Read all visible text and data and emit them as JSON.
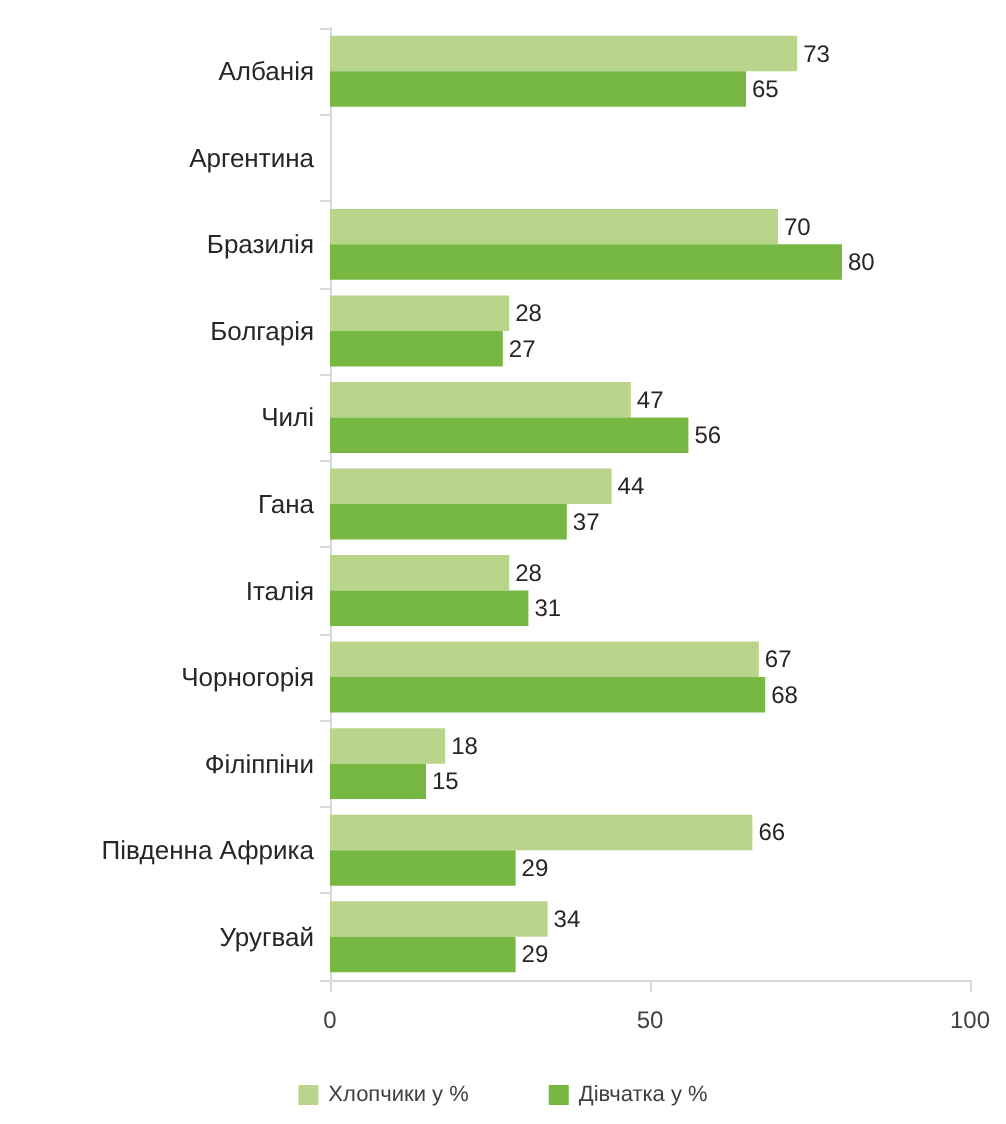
{
  "chart_data": {
    "type": "bar",
    "orientation": "horizontal",
    "categories": [
      "Албанія",
      "Аргентина",
      "Бразилія",
      "Болгарія",
      "Чилі",
      "Гана",
      "Італія",
      "Чорногорія",
      "Філіппіни",
      "Південна Африка",
      "Уругвай"
    ],
    "series": [
      {
        "name": "Хлопчики у %",
        "color": "#b9d48b",
        "values": [
          73,
          null,
          70,
          28,
          47,
          44,
          28,
          67,
          18,
          66,
          34
        ]
      },
      {
        "name": "Дівчатка у %",
        "color": "#77b843",
        "values": [
          65,
          null,
          80,
          27,
          56,
          37,
          31,
          68,
          15,
          29,
          29
        ]
      }
    ],
    "xlim": [
      0,
      100
    ],
    "xticks": [
      0,
      50,
      100
    ],
    "grid": false,
    "legend": "bottom",
    "data_labels": true
  }
}
